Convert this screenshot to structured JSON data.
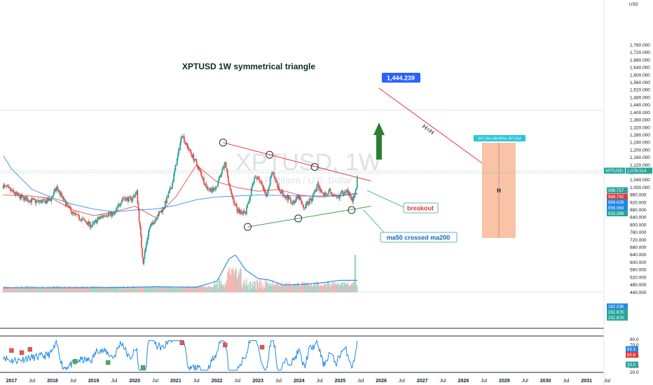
{
  "chart_data": {
    "type": "candlestick",
    "symbol": "XPTUSD",
    "timeframe": "1W",
    "title": "XPTUSD 1W symmetrical triangle",
    "watermark_symbol": "XPTUSD, 1W",
    "watermark_name": "Platinum / U.S. Dollar",
    "currency_label": "USD",
    "x_ticks": [
      "2017",
      "Jul",
      "2018",
      "Jul",
      "2019",
      "Jul",
      "2020",
      "Jul",
      "2021",
      "Jul",
      "2022",
      "Jul",
      "2023",
      "Jul",
      "2024",
      "Jul",
      "2025",
      "Jul",
      "2026",
      "Jul",
      "2027",
      "Jul",
      "2028",
      "Jul",
      "2029",
      "Jul",
      "2030",
      "Jul",
      "2031",
      "Jul"
    ],
    "x_tick_positions": [
      2017.0,
      2017.5,
      2018.0,
      2018.5,
      2019.0,
      2019.5,
      2020.0,
      2020.5,
      2021.0,
      2021.5,
      2022.0,
      2022.5,
      2023.0,
      2023.5,
      2024.0,
      2024.5,
      2025.0,
      2025.5,
      2026.0,
      2026.5,
      2027.0,
      2027.5,
      2028.0,
      2028.5,
      2029.0,
      2029.5,
      2030.0,
      2030.5,
      2031.0,
      2031.5
    ],
    "y_ticks": [
      "1,760.000",
      "1,720.000",
      "1,680.000",
      "1,640.000",
      "1,600.000",
      "1,560.000",
      "1,520.000",
      "1,480.000",
      "1,440.000",
      "1,400.000",
      "1,360.000",
      "1,320.000",
      "1,280.000",
      "1,240.000",
      "1,200.000",
      "1,160.000",
      "1,120.000",
      "1,080.000",
      "1,040.000",
      "1,000.000",
      "960.000",
      "920.000",
      "880.000",
      "840.000",
      "800.000",
      "760.000",
      "720.000",
      "680.000",
      "640.000",
      "600.000",
      "560.000",
      "520.000",
      "480.000",
      "440.000"
    ],
    "y_tick_values": [
      1760,
      1720,
      1680,
      1640,
      1600,
      1560,
      1520,
      1480,
      1440,
      1400,
      1360,
      1320,
      1280,
      1240,
      1200,
      1160,
      1120,
      1080,
      1040,
      1000,
      960,
      920,
      880,
      840,
      800,
      760,
      720,
      680,
      640,
      600,
      560,
      520,
      480,
      440
    ],
    "price_path": [
      [
        2016.8,
        1010
      ],
      [
        2017.0,
        980
      ],
      [
        2017.2,
        950
      ],
      [
        2017.4,
        935
      ],
      [
        2017.6,
        925
      ],
      [
        2017.8,
        925
      ],
      [
        2017.95,
        935
      ],
      [
        2018.1,
        1000
      ],
      [
        2018.3,
        920
      ],
      [
        2018.5,
        860
      ],
      [
        2018.75,
        825
      ],
      [
        2018.95,
        795
      ],
      [
        2019.1,
        830
      ],
      [
        2019.3,
        860
      ],
      [
        2019.5,
        855
      ],
      [
        2019.7,
        945
      ],
      [
        2019.9,
        935
      ],
      [
        2020.05,
        975
      ],
      [
        2020.2,
        600
      ],
      [
        2020.35,
        780
      ],
      [
        2020.55,
        850
      ],
      [
        2020.7,
        890
      ],
      [
        2020.9,
        1010
      ],
      [
        2021.05,
        1170
      ],
      [
        2021.15,
        1290
      ],
      [
        2021.25,
        1230
      ],
      [
        2021.45,
        1150
      ],
      [
        2021.6,
        1080
      ],
      [
        2021.75,
        1000
      ],
      [
        2021.95,
        980
      ],
      [
        2022.1,
        1070
      ],
      [
        2022.2,
        1130
      ],
      [
        2022.35,
        960
      ],
      [
        2022.5,
        880
      ],
      [
        2022.7,
        860
      ],
      [
        2022.9,
        1040
      ],
      [
        2023.0,
        1060
      ],
      [
        2023.2,
        950
      ],
      [
        2023.35,
        1090
      ],
      [
        2023.5,
        990
      ],
      [
        2023.7,
        950
      ],
      [
        2023.85,
        920
      ],
      [
        2024.0,
        950
      ],
      [
        2024.1,
        890
      ],
      [
        2024.3,
        940
      ],
      [
        2024.45,
        1010
      ],
      [
        2024.6,
        960
      ],
      [
        2024.75,
        980
      ],
      [
        2024.9,
        940
      ],
      [
        2025.0,
        960
      ],
      [
        2025.15,
        990
      ],
      [
        2025.25,
        950
      ],
      [
        2025.3,
        930
      ],
      [
        2025.38,
        975
      ],
      [
        2025.43,
        1078.514
      ]
    ],
    "series": [
      {
        "name": "MA (fast)",
        "color": "#e53935",
        "points": [
          [
            2016.8,
            960
          ],
          [
            2017.5,
            955
          ],
          [
            2018.0,
            940
          ],
          [
            2018.5,
            880
          ],
          [
            2019.0,
            850
          ],
          [
            2019.5,
            870
          ],
          [
            2020.0,
            900
          ],
          [
            2020.5,
            840
          ],
          [
            2021.0,
            950
          ],
          [
            2021.5,
            1120
          ],
          [
            2022.0,
            1030
          ],
          [
            2022.5,
            1000
          ],
          [
            2023.0,
            980
          ],
          [
            2023.5,
            990
          ],
          [
            2024.0,
            960
          ],
          [
            2024.5,
            950
          ],
          [
            2025.0,
            958
          ],
          [
            2025.43,
            968.742
          ]
        ]
      },
      {
        "name": "MA (slow)",
        "color": "#1e88e5",
        "points": [
          [
            2016.8,
            1170
          ],
          [
            2017.0,
            1100
          ],
          [
            2017.5,
            990
          ],
          [
            2018.0,
            945
          ],
          [
            2018.5,
            910
          ],
          [
            2019.0,
            885
          ],
          [
            2019.5,
            870
          ],
          [
            2020.0,
            880
          ],
          [
            2020.5,
            885
          ],
          [
            2021.0,
            905
          ],
          [
            2021.5,
            935
          ],
          [
            2022.0,
            950
          ],
          [
            2022.5,
            955
          ],
          [
            2023.0,
            960
          ],
          [
            2023.5,
            958
          ],
          [
            2024.0,
            955
          ],
          [
            2024.5,
            955
          ],
          [
            2025.0,
            956
          ],
          [
            2025.43,
            966.628
          ]
        ]
      }
    ],
    "volume": {
      "ma_points": [
        [
          2016.8,
          465
        ],
        [
          2019.5,
          466
        ],
        [
          2020.5,
          470
        ],
        [
          2021.5,
          468
        ],
        [
          2022.0,
          500
        ],
        [
          2022.3,
          620
        ],
        [
          2022.45,
          640
        ],
        [
          2022.7,
          560
        ],
        [
          2023.0,
          515
        ],
        [
          2023.3,
          505
        ],
        [
          2023.6,
          480
        ],
        [
          2024.0,
          482
        ],
        [
          2024.5,
          490
        ],
        [
          2025.0,
          505
        ],
        [
          2025.43,
          505
        ]
      ]
    },
    "rsi": {
      "ylim": [
        20,
        80
      ],
      "ticks": [
        "80.0",
        "70.0",
        "50.0",
        "30.0",
        "20.0"
      ],
      "tick_values": [
        80,
        70,
        50,
        30,
        20
      ]
    },
    "annotations": {
      "target_label": "1,444.239",
      "h_line_label": "H=H",
      "box_label": "H",
      "box_header": "397.554 (48.89%) 397,554",
      "breakout_label": "breakout",
      "ma_cross_label": "ma50 crossed ma200"
    },
    "last_price_tags": [
      {
        "text": "XPTUSD",
        "color": "#26a69a"
      },
      {
        "text": "1,078.514",
        "color": "#26a69a"
      },
      {
        "text": "996.727",
        "color": "#26a69a"
      },
      {
        "text": "968.742",
        "color": "#e53935"
      },
      {
        "text": "966.628",
        "color": "#1e88e5"
      },
      {
        "text": "956.063",
        "color": "#1e88e5"
      },
      {
        "text": "915.396",
        "color": "#26a69a"
      }
    ],
    "volume_tags": [
      {
        "text": "282.03K",
        "color": "#1e88e5"
      },
      {
        "text": "251.67K",
        "color": "#26a69a"
      },
      {
        "text": "251.67K",
        "color": "#26a69a"
      }
    ],
    "rsi_tags": [
      {
        "text": "63.3",
        "color": "#1e88e5"
      },
      {
        "text": "60.6",
        "color": "#e53935"
      },
      {
        "text": "33.0",
        "color": "#26a69a"
      }
    ],
    "colors": {
      "up": "#26a69a",
      "down": "#ef5350",
      "ma_fast": "#e53935",
      "ma_slow": "#1e88e5",
      "target": "#2962ff",
      "box": "#f7b998"
    }
  }
}
